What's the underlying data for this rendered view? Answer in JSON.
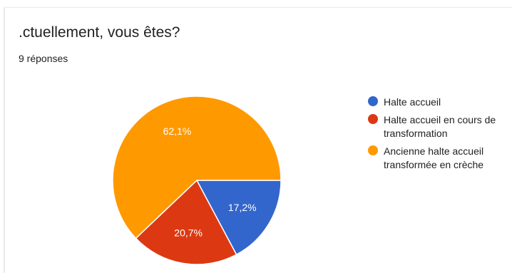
{
  "question": {
    "title": ".ctuellement, vous êtes?",
    "responses": "9 réponses"
  },
  "colors": {
    "blue": "#3366cc",
    "red": "#dc3912",
    "orange": "#ff9900"
  },
  "chart_data": {
    "type": "pie",
    "title": ".ctuellement, vous êtes?",
    "legend_position": "right",
    "start_angle_deg": 90,
    "direction": "clockwise",
    "slices": [
      {
        "label": "Halte accueil",
        "value": 17.2,
        "display": "17,2%",
        "color": "#3366cc"
      },
      {
        "label": "Halte accueil en cours de\ntransformation",
        "value": 20.7,
        "display": "20,7%",
        "color": "#dc3912"
      },
      {
        "label": "Ancienne halte accueil\ntransformée en crèche",
        "value": 62.1,
        "display": "62,1%",
        "color": "#ff9900"
      }
    ]
  }
}
